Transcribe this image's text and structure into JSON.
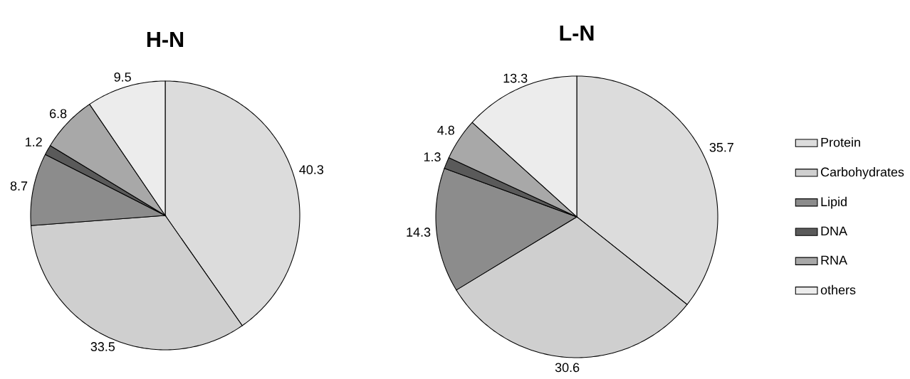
{
  "chart_data": [
    {
      "type": "pie",
      "title": "H-N",
      "categories": [
        null,
        null,
        null,
        null,
        null,
        null
      ],
      "values": [
        40.3,
        33.5,
        8.7,
        1.2,
        6.8,
        9.5
      ],
      "colors": [
        "#dcdcdc",
        "#cfcfcf",
        "#8c8c8c",
        "#5a5a5a",
        "#a8a8a8",
        "#ececec"
      ],
      "data_labels": true,
      "legend": false
    },
    {
      "type": "pie",
      "title": "L-N",
      "categories": [
        "Protein",
        "Carbohydrates",
        "Lipid",
        "DNA",
        "RNA",
        "others"
      ],
      "values": [
        35.7,
        30.6,
        14.3,
        1.3,
        4.8,
        13.3
      ],
      "colors": [
        "#dcdcdc",
        "#cfcfcf",
        "#8c8c8c",
        "#5a5a5a",
        "#a8a8a8",
        "#ececec"
      ],
      "data_labels": true,
      "legend": "right"
    }
  ]
}
